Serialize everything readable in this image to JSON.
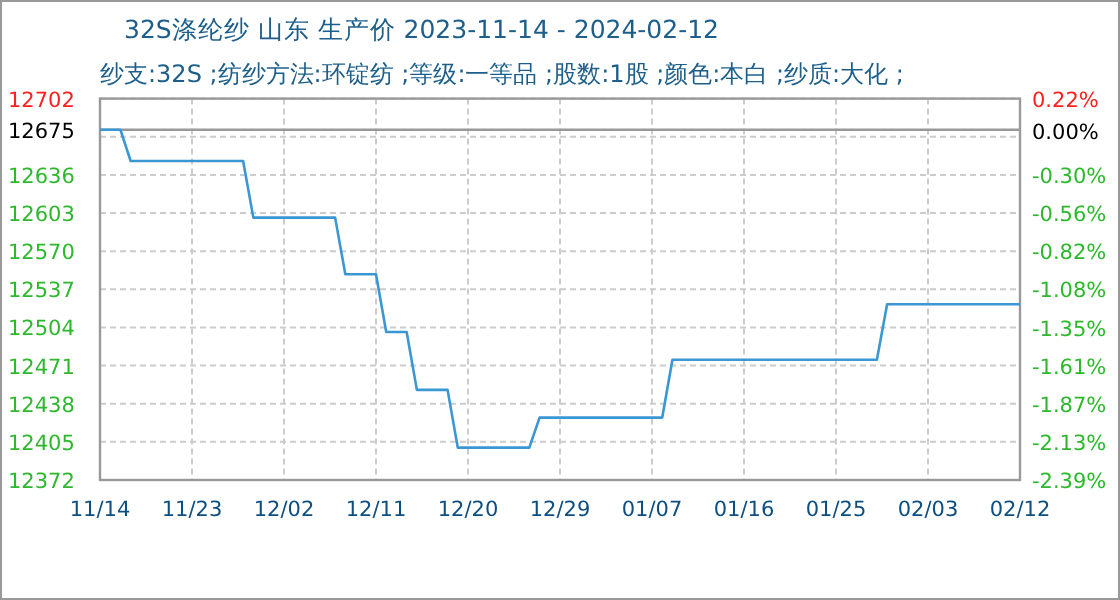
{
  "chart_data": {
    "type": "line",
    "title": "32S涤纶纱 山东 生产价 2023-11-14 - 2024-02-12",
    "subtitle": "纱支:32S ;纺纱方法:环锭纺 ;等级:一等品 ;股数:1股 ;颜色:本白 ;纱质:大化 ;",
    "x": [
      "2023-11-14",
      "2023-11-16",
      "2023-11-17",
      "2023-11-28",
      "2023-11-29",
      "2023-12-07",
      "2023-12-08",
      "2023-12-11",
      "2023-12-12",
      "2023-12-14",
      "2023-12-15",
      "2023-12-18",
      "2023-12-19",
      "2023-12-26",
      "2023-12-27",
      "2024-01-08",
      "2024-01-09",
      "2024-01-29",
      "2024-01-30",
      "2024-02-12"
    ],
    "series": [
      {
        "color": "#3a97d4",
        "values": [
          12675,
          12675,
          12648,
          12648,
          12599,
          12599,
          12550,
          12550,
          12500,
          12500,
          12450,
          12450,
          12400,
          12400,
          12426,
          12426,
          12476,
          12476,
          12524,
          12524
        ]
      }
    ],
    "xlim": [
      "2023-11-14",
      "2024-02-12"
    ],
    "xticks": [
      {
        "value": "2023-11-14",
        "label": "11/14"
      },
      {
        "value": "2023-11-23",
        "label": "11/23"
      },
      {
        "value": "2023-12-02",
        "label": "12/02"
      },
      {
        "value": "2023-12-11",
        "label": "12/11"
      },
      {
        "value": "2023-12-20",
        "label": "12/20"
      },
      {
        "value": "2023-12-29",
        "label": "12/29"
      },
      {
        "value": "2024-01-07",
        "label": "01/07"
      },
      {
        "value": "2024-01-16",
        "label": "01/16"
      },
      {
        "value": "2024-01-25",
        "label": "01/25"
      },
      {
        "value": "2024-02-03",
        "label": "02/03"
      },
      {
        "value": "2024-02-12",
        "label": "02/12"
      }
    ],
    "ylim": [
      12372,
      12702
    ],
    "yticks": [
      12702,
      12675,
      {
        "value": 12669,
        "label": null
      },
      12636,
      12603,
      12570,
      12537,
      12504,
      12471,
      12438,
      12405,
      12372
    ],
    "y2lim": [
      -2.39,
      0.22
    ],
    "y2ticks": [
      {
        "value": 0.22,
        "label": "0.22%"
      },
      {
        "value": 0,
        "label": "0.00%"
      },
      {
        "value": -0.3,
        "label": "-0.30%"
      },
      {
        "value": -0.56,
        "label": "-0.56%"
      },
      {
        "value": -0.82,
        "label": "-0.82%"
      },
      {
        "value": -1.08,
        "label": "-1.08%"
      },
      {
        "value": -1.35,
        "label": "-1.35%"
      },
      {
        "value": -1.61,
        "label": "-1.61%"
      },
      {
        "value": -1.87,
        "label": "-1.87%"
      },
      {
        "value": -2.13,
        "label": "-2.13%"
      },
      {
        "value": -2.39,
        "label": "-2.39%"
      }
    ],
    "ref_lines": [
      {
        "axis": "y",
        "value": 12675,
        "color": "#999999"
      }
    ],
    "grid": true,
    "marker": "none",
    "line_style": "solid"
  }
}
